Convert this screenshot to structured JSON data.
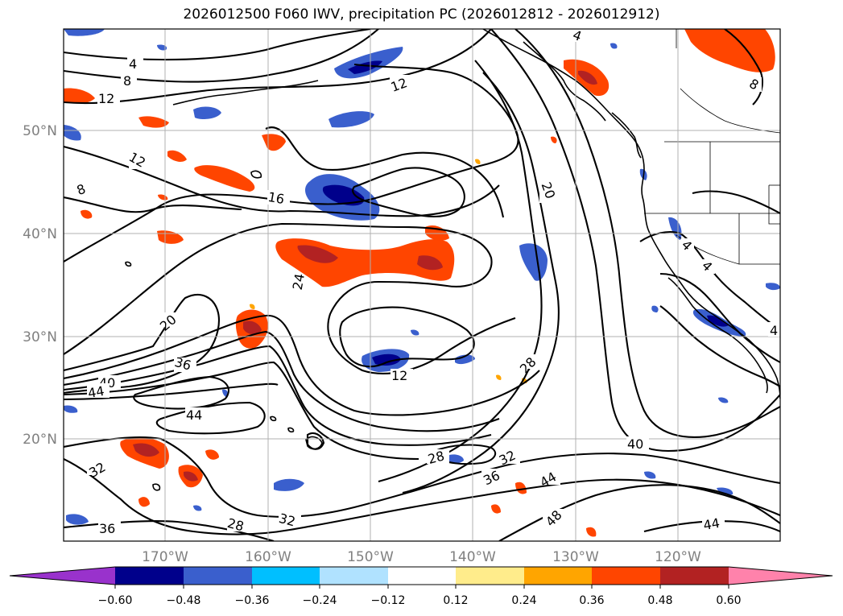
{
  "title": "2026012500 F060 IWV, precipitation PC (2026012812 - 2026012912)",
  "axes": {
    "lat_labels": [
      "50°N",
      "40°N",
      "30°N",
      "20°N"
    ],
    "lon_labels": [
      "170°W",
      "160°W",
      "150°W",
      "140°W",
      "130°W",
      "120°W"
    ]
  },
  "colorbar": {
    "tick_labels": [
      "−0.60",
      "−0.48",
      "−0.36",
      "−0.24",
      "−0.12",
      "0.12",
      "0.24",
      "0.36",
      "0.48",
      "0.60"
    ],
    "colors": [
      "#9932cc",
      "#00008b",
      "#3a5fcd",
      "#00bfff",
      "#b0e2ff",
      "#ffffff",
      "#ffec8b",
      "#ffa500",
      "#ff4500",
      "#b22222",
      "#ff82ab"
    ]
  },
  "contour_labels": [
    "4",
    "8",
    "12",
    "12",
    "8",
    "12",
    "16",
    "20",
    "24",
    "20",
    "36",
    "40",
    "44",
    "44",
    "12",
    "28",
    "20",
    "28",
    "32",
    "36",
    "44",
    "48",
    "40",
    "44",
    "32",
    "36",
    "28",
    "32",
    "4",
    "4",
    "4",
    "8",
    "4"
  ]
}
